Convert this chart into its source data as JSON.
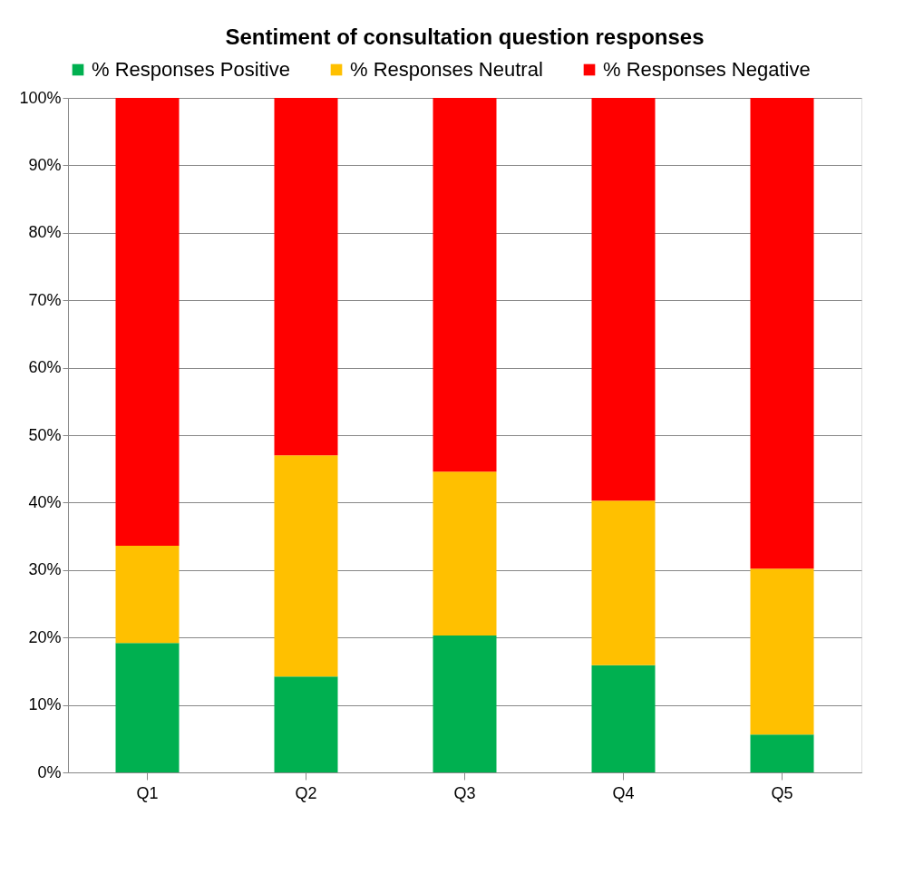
{
  "chart_data": {
    "type": "bar",
    "title": "Sentiment of consultation question responses",
    "categories": [
      "Q1",
      "Q2",
      "Q3",
      "Q4",
      "Q5"
    ],
    "stacked": true,
    "series": [
      {
        "name": "% Responses Positive",
        "color": "#00b050",
        "values": [
          19.2,
          14.2,
          20.3,
          15.9,
          5.6
        ]
      },
      {
        "name": "% Responses Neutral",
        "color": "#ffc000",
        "values": [
          14.4,
          32.8,
          24.3,
          24.4,
          24.6
        ]
      },
      {
        "name": "% Responses Negative",
        "color": "#ff0000",
        "values": [
          66.4,
          53.0,
          55.4,
          59.7,
          69.8
        ]
      }
    ],
    "ylim": [
      0,
      100
    ],
    "yticks": [
      {
        "value": 0,
        "label": "0%"
      },
      {
        "value": 10,
        "label": "10%"
      },
      {
        "value": 20,
        "label": "20%"
      },
      {
        "value": 30,
        "label": "30%"
      },
      {
        "value": 40,
        "label": "40%"
      },
      {
        "value": 50,
        "label": "50%"
      },
      {
        "value": 60,
        "label": "60%"
      },
      {
        "value": 70,
        "label": "70%"
      },
      {
        "value": 80,
        "label": "80%"
      },
      {
        "value": 90,
        "label": "90%"
      },
      {
        "value": 100,
        "label": "100%"
      }
    ],
    "grid": "y",
    "legend": "top"
  }
}
